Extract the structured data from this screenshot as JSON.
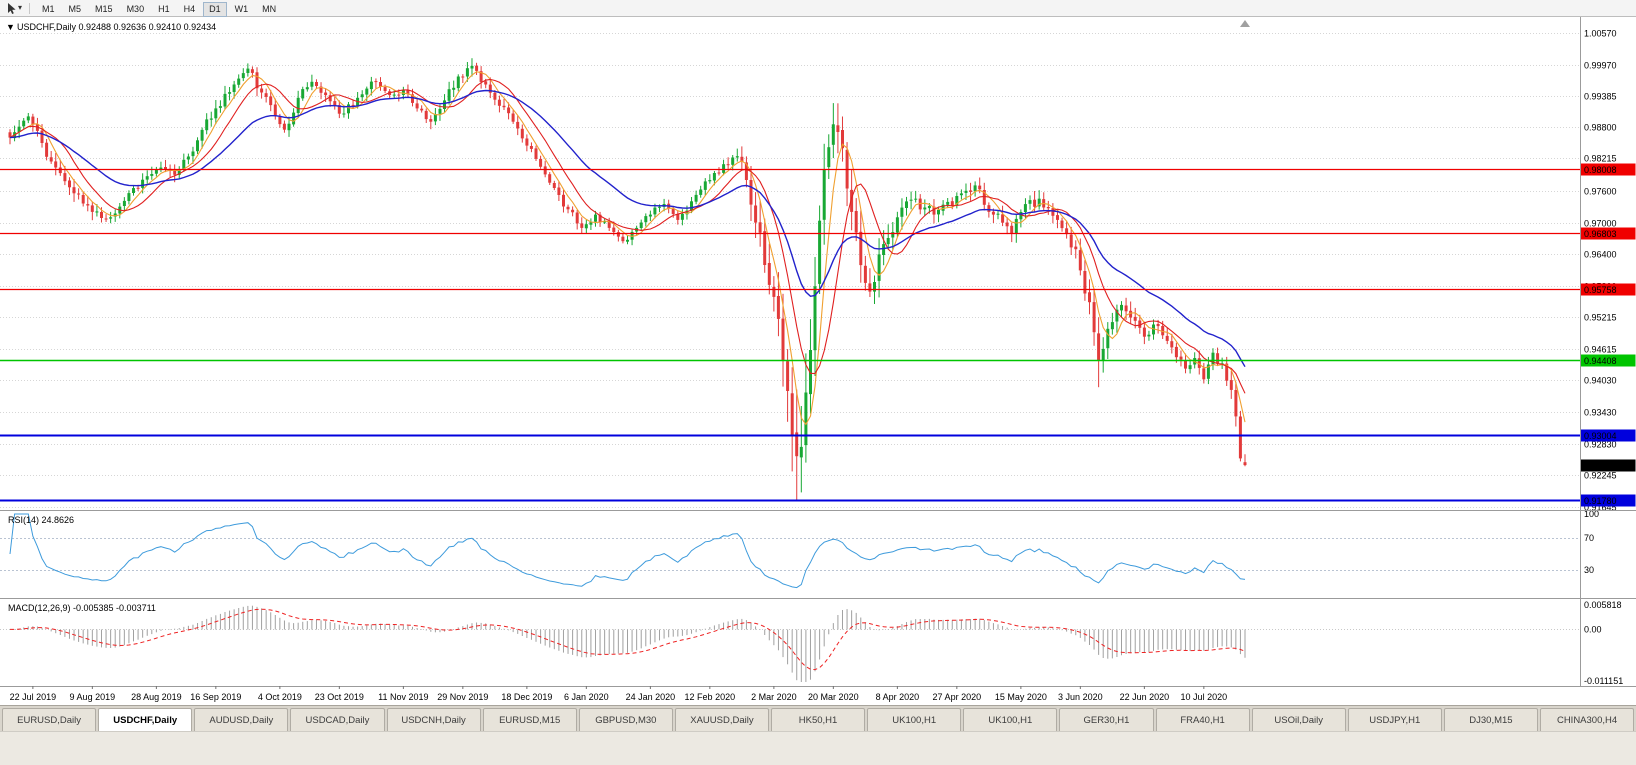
{
  "toolbar": {
    "timeframes": [
      "M1",
      "M5",
      "M15",
      "M30",
      "H1",
      "H4",
      "D1",
      "W1",
      "MN"
    ],
    "active_timeframe": "D1",
    "cursor_tool_icon": "pointer-icon",
    "dropdown_icon": "chevron-down-icon"
  },
  "indicators": {
    "rsi": {
      "name": "RSI(14)",
      "value_text": "24.8626",
      "axis_labels": [
        "100",
        "70",
        "30"
      ],
      "level_values": [
        100,
        70,
        30
      ],
      "levels_dashed": [
        70,
        30
      ],
      "line_color": "#3e9bdc"
    },
    "macd": {
      "name": "MACD(12,26,9)",
      "value_texts": [
        "-0.005385",
        "-0.003711"
      ],
      "axis_labels": [
        "0.005818",
        "0.00",
        "-0.011151"
      ],
      "axis_max": 0.005818,
      "axis_min": -0.011151,
      "histogram_color": "#a0a0a0",
      "signal_color": "#ee2222"
    }
  },
  "tabs": {
    "items": [
      "EURUSD,Daily",
      "USDCHF,Daily",
      "AUDUSD,Daily",
      "USDCAD,Daily",
      "USDCNH,Daily",
      "EURUSD,M15",
      "GBPUSD,M30",
      "XAUUSD,Daily",
      "HK50,H1",
      "UK100,H1",
      "UK100,H1",
      "GER30,H1",
      "FRA40,H1",
      "USOil,Daily",
      "USDJPY,H1",
      "DJ30,M15",
      "CHINA300,H4"
    ],
    "active": "USDCHF,Daily"
  },
  "chart_data": {
    "type": "candlestick",
    "symbol": "USDCHF",
    "timeframe": "Daily",
    "title_text": "USDCHF,Daily",
    "dropdown_glyph": "▼",
    "ohlc_text": {
      "open": "0.92488",
      "high": "0.92636",
      "low": "0.92410",
      "close": "0.92434"
    },
    "last_bar": {
      "open": 0.92488,
      "high": 0.92636,
      "low": 0.9241,
      "close": 0.92434
    },
    "bar_count": 271,
    "seed": 11,
    "price_range_top": 1.00871,
    "price_range_bottom": 0.91588,
    "price_axis_labels": [
      "1.00570",
      "0.99970",
      "0.99385",
      "0.98800",
      "0.98215",
      "0.97600",
      "0.97000",
      "0.96400",
      "0.95800",
      "0.95215",
      "0.94615",
      "0.94030",
      "0.93430",
      "0.92830",
      "0.92245",
      "0.91645"
    ],
    "levels": [
      {
        "price": 0.98008,
        "label": "0.98008",
        "color": "#f00000",
        "width": 1.3
      },
      {
        "price": 0.96803,
        "label": "0.96803",
        "color": "#f00000",
        "width": 1.3
      },
      {
        "price": 0.95758,
        "label": "0.95758",
        "color": "#f00000",
        "width": 1.3
      },
      {
        "price": 0.94408,
        "label": "0.94408",
        "color": "#00c400",
        "width": 1.5
      },
      {
        "price": 0.93004,
        "label": "0.93004",
        "color": "#0000dd",
        "width": 2
      },
      {
        "price": 0.9178,
        "label": "0.91780",
        "color": "#0000dd",
        "width": 2
      }
    ],
    "current_price": {
      "value": 0.92434,
      "label": "0.92434",
      "badge_color": "#000000",
      "text_color": "#ffffff"
    },
    "moving_averages": [
      {
        "name": "ma-fast",
        "type": "sma",
        "period": 5,
        "color": "#f0a030"
      },
      {
        "name": "ma-mid",
        "type": "sma",
        "period": 10,
        "color": "#e02020"
      },
      {
        "name": "ma-slow",
        "type": "ema",
        "period": 26,
        "color": "#2222cc"
      }
    ],
    "colors": {
      "up": "#18a834",
      "down": "#e23a3a",
      "grid": "#d6d6d6",
      "separator": "#9b9b9b",
      "wick_same_as_body": true
    },
    "date_labels": [
      "22 Jul 2019",
      "9 Aug 2019",
      "28 Aug 2019",
      "16 Sep 2019",
      "4 Oct 2019",
      "23 Oct 2019",
      "11 Nov 2019",
      "29 Nov 2019",
      "18 Dec 2019",
      "6 Jan 2020",
      "24 Jan 2020",
      "12 Feb 2020",
      "2 Mar 2020",
      "20 Mar 2020",
      "8 Apr 2020",
      "27 Apr 2020",
      "15 May 2020",
      "3 Jun 2020",
      "22 Jun 2020",
      "10 Jul 2020"
    ],
    "date_label_bars": [
      5,
      18,
      32,
      45,
      59,
      72,
      86,
      99,
      113,
      126,
      140,
      153,
      167,
      180,
      194,
      207,
      221,
      234,
      248,
      261
    ],
    "waypoints": [
      [
        0,
        0.986,
        0.0016
      ],
      [
        4,
        0.99,
        0.0016
      ],
      [
        9,
        0.9815,
        0.0018
      ],
      [
        14,
        0.9755,
        0.0018
      ],
      [
        18,
        0.972,
        0.0018
      ],
      [
        22,
        0.971,
        0.0016
      ],
      [
        27,
        0.9765,
        0.0016
      ],
      [
        32,
        0.98,
        0.0016
      ],
      [
        36,
        0.979,
        0.0016
      ],
      [
        41,
        0.9855,
        0.0017
      ],
      [
        45,
        0.9915,
        0.0018
      ],
      [
        49,
        0.996,
        0.0018
      ],
      [
        52,
        0.999,
        0.0018
      ],
      [
        55,
        0.9945,
        0.0018
      ],
      [
        58,
        0.99,
        0.0017
      ],
      [
        60,
        0.9875,
        0.0017
      ],
      [
        63,
        0.9935,
        0.0017
      ],
      [
        66,
        0.9965,
        0.0016
      ],
      [
        69,
        0.994,
        0.0016
      ],
      [
        72,
        0.9905,
        0.0016
      ],
      [
        76,
        0.9935,
        0.0015
      ],
      [
        80,
        0.9965,
        0.0015
      ],
      [
        83,
        0.994,
        0.0015
      ],
      [
        86,
        0.995,
        0.0015
      ],
      [
        89,
        0.9915,
        0.0016
      ],
      [
        92,
        0.989,
        0.0016
      ],
      [
        95,
        0.993,
        0.0016
      ],
      [
        98,
        0.9975,
        0.0017
      ],
      [
        101,
        0.9995,
        0.0017
      ],
      [
        104,
        0.996,
        0.0016
      ],
      [
        107,
        0.992,
        0.0015
      ],
      [
        110,
        0.989,
        0.0015
      ],
      [
        113,
        0.9845,
        0.0015
      ],
      [
        116,
        0.9805,
        0.0015
      ],
      [
        119,
        0.9765,
        0.0015
      ],
      [
        122,
        0.9725,
        0.0015
      ],
      [
        125,
        0.969,
        0.0014
      ],
      [
        128,
        0.9715,
        0.0014
      ],
      [
        131,
        0.969,
        0.0013
      ],
      [
        134,
        0.9665,
        0.0013
      ],
      [
        137,
        0.969,
        0.0013
      ],
      [
        140,
        0.9715,
        0.0013
      ],
      [
        143,
        0.9735,
        0.0013
      ],
      [
        146,
        0.9705,
        0.0013
      ],
      [
        149,
        0.974,
        0.0013
      ],
      [
        153,
        0.978,
        0.0014
      ],
      [
        156,
        0.981,
        0.0015
      ],
      [
        159,
        0.9825,
        0.0016
      ],
      [
        161,
        0.978,
        0.003
      ],
      [
        163,
        0.97,
        0.004
      ],
      [
        165,
        0.962,
        0.005
      ],
      [
        167,
        0.956,
        0.006
      ],
      [
        169,
        0.944,
        0.007
      ],
      [
        171,
        0.93,
        0.008
      ],
      [
        172,
        0.926,
        0.009
      ],
      [
        174,
        0.938,
        0.009
      ],
      [
        176,
        0.958,
        0.008
      ],
      [
        178,
        0.98,
        0.007
      ],
      [
        180,
        0.9885,
        0.006
      ],
      [
        182,
        0.984,
        0.0055
      ],
      [
        184,
        0.972,
        0.005
      ],
      [
        186,
        0.962,
        0.0045
      ],
      [
        188,
        0.957,
        0.004
      ],
      [
        190,
        0.964,
        0.0035
      ],
      [
        194,
        0.971,
        0.0028
      ],
      [
        198,
        0.9745,
        0.0024
      ],
      [
        202,
        0.9715,
        0.0022
      ],
      [
        207,
        0.975,
        0.002
      ],
      [
        211,
        0.977,
        0.0019
      ],
      [
        215,
        0.9715,
        0.0019
      ],
      [
        219,
        0.968,
        0.0019
      ],
      [
        221,
        0.972,
        0.0019
      ],
      [
        225,
        0.9745,
        0.0018
      ],
      [
        229,
        0.9705,
        0.0018
      ],
      [
        233,
        0.965,
        0.0022
      ],
      [
        234,
        0.961,
        0.0026
      ],
      [
        236,
        0.955,
        0.003
      ],
      [
        238,
        0.944,
        0.0034
      ],
      [
        240,
        0.95,
        0.0028
      ],
      [
        243,
        0.9545,
        0.0022
      ],
      [
        246,
        0.9515,
        0.002
      ],
      [
        248,
        0.9485,
        0.002
      ],
      [
        251,
        0.9505,
        0.0018
      ],
      [
        254,
        0.9465,
        0.0018
      ],
      [
        257,
        0.9425,
        0.0018
      ],
      [
        259,
        0.9445,
        0.0018
      ],
      [
        261,
        0.9405,
        0.0018
      ],
      [
        263,
        0.9455,
        0.0018
      ],
      [
        265,
        0.9435,
        0.0018
      ],
      [
        267,
        0.9385,
        0.002
      ],
      [
        268,
        0.9335,
        0.0022
      ],
      [
        269,
        0.9256,
        0.0022
      ],
      [
        270,
        0.92434,
        0.0016
      ]
    ],
    "forced_bars": {
      "172": {
        "l": 0.9178
      },
      "238": {
        "l": 0.939
      },
      "270": {
        "o": 0.92488,
        "h": 0.92636,
        "l": 0.9241,
        "c": 0.92434
      }
    }
  }
}
